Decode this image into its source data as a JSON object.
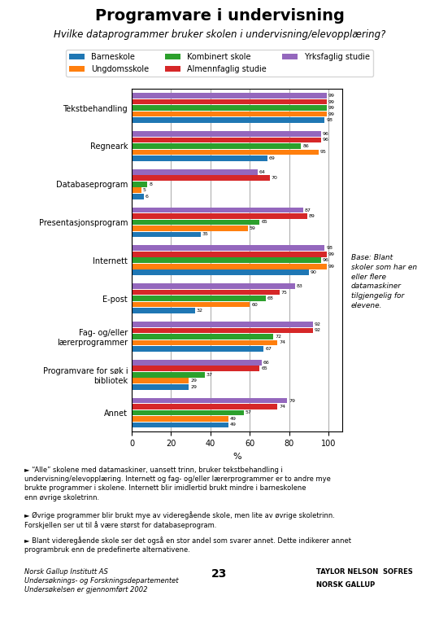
{
  "chart_data": {
    "type": "bar",
    "orientation": "horizontal",
    "title": "Programvare i undervisning",
    "subtitle": "Hvilke dataprogrammer bruker skolen i undervisning/elevopplæring?",
    "x_label": "%",
    "categories": [
      "Annet",
      "Programvare for søk i\nbibliotek",
      "Fag- og/eller\nlærerprogrammer",
      "E-post",
      "Internett",
      "Presentasjonsprogram",
      "Databaseprogram",
      "Regneark",
      "Tekstbehandling"
    ],
    "series": [
      {
        "name": "Barneskole",
        "values": [
          49,
          29,
          67,
          32,
          90,
          35,
          6,
          69,
          98
        ]
      },
      {
        "name": "Ungdomsskole",
        "values": [
          49,
          29,
          74,
          60,
          99,
          59,
          5,
          95,
          99
        ]
      },
      {
        "name": "Kombinert skole",
        "values": [
          57,
          37,
          72,
          68,
          96,
          65,
          8,
          86,
          99
        ]
      },
      {
        "name": "Almennfaglig studie",
        "values": [
          74,
          65,
          92,
          75,
          99,
          89,
          70,
          96,
          99
        ]
      },
      {
        "name": "Yrksfaglig studie",
        "values": [
          79,
          66,
          92,
          83,
          98,
          87,
          64,
          96,
          99
        ]
      }
    ],
    "xlim": [
      0,
      107
    ],
    "xticks": [
      0,
      20,
      40,
      60,
      80,
      100
    ],
    "grid": true,
    "data_labels": true,
    "legend": "upper center",
    "note": "Base: Blant\nskoler som har en\neller flere\ndatamaskiner\ntilgjengelig for\nelevene.",
    "footnotes": [
      "► “Alle” skolene med datamaskiner, uansett trinn, bruker tekstbehandling i\nundervisning/elevopplæring. Internett og fag- og/eller lærerprogrammer er to andre mye\nbrukte programmer i skolene. Internett blir imidlertid brukt mindre i barneskolene\nenn øvrige skoletrinn.",
      "► Øvrige programmer blir brukt mye av videregående skole, men lite av øvrige skoletrinn.\nForskjellen ser ut til å være størst for databaseprogram.",
      "► Blant videregående skole ser det også en stor andel som svarer annet. Dette indikerer annet\nprogrambruk enn de predefinerte alternativene."
    ],
    "footer": "Norsk Gallup Institutt AS\nUndersøknings- og Forskningsdepartementet\nUndersøkelsen er gjennomført 2002",
    "page_number": "23",
    "logo_texts": [
      "TAYLOR NELSON  SOFRES",
      "NORSK GALLUP"
    ]
  }
}
